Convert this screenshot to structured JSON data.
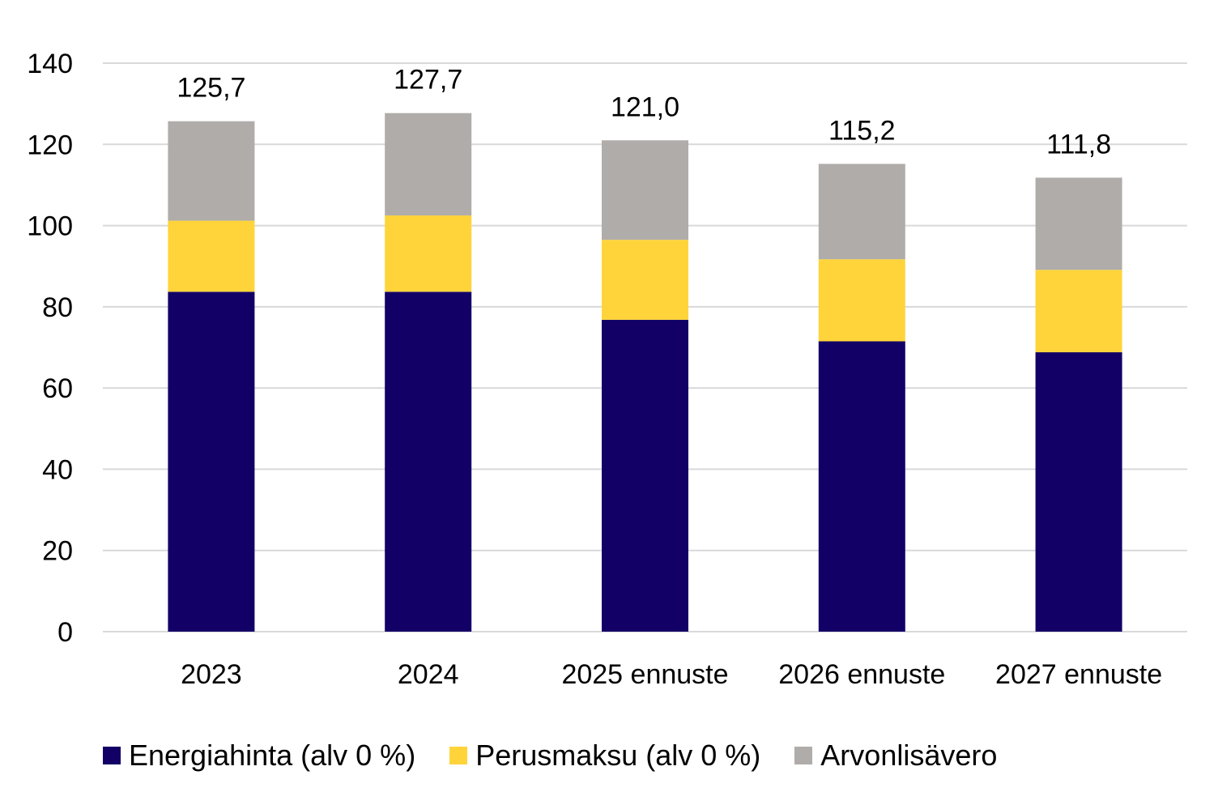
{
  "chart_data": {
    "type": "bar",
    "stacked": true,
    "categories": [
      "2023",
      "2024",
      "2025 ennuste",
      "2026 ennuste",
      "2027 ennuste"
    ],
    "series": [
      {
        "name": "Energiahinta (alv 0 %)",
        "color": "#120066",
        "values": [
          83.7,
          83.7,
          76.8,
          71.5,
          68.8
        ]
      },
      {
        "name": "Perusmaksu (alv 0 %)",
        "color": "#FFD43A",
        "values": [
          17.5,
          18.8,
          19.7,
          20.2,
          20.3
        ]
      },
      {
        "name": "Arvonlisävero",
        "color": "#B0ACAA",
        "values": [
          24.5,
          25.2,
          24.5,
          23.5,
          22.7
        ]
      }
    ],
    "totals": [
      "125,7",
      "127,7",
      "121,0",
      "115,2",
      "111,8"
    ],
    "ylim": [
      0,
      140
    ],
    "yticks": [
      "0",
      "20",
      "40",
      "60",
      "80",
      "100",
      "120",
      "140"
    ],
    "grid": true,
    "legend_position": "bottom",
    "title": "",
    "xlabel": "",
    "ylabel": ""
  }
}
